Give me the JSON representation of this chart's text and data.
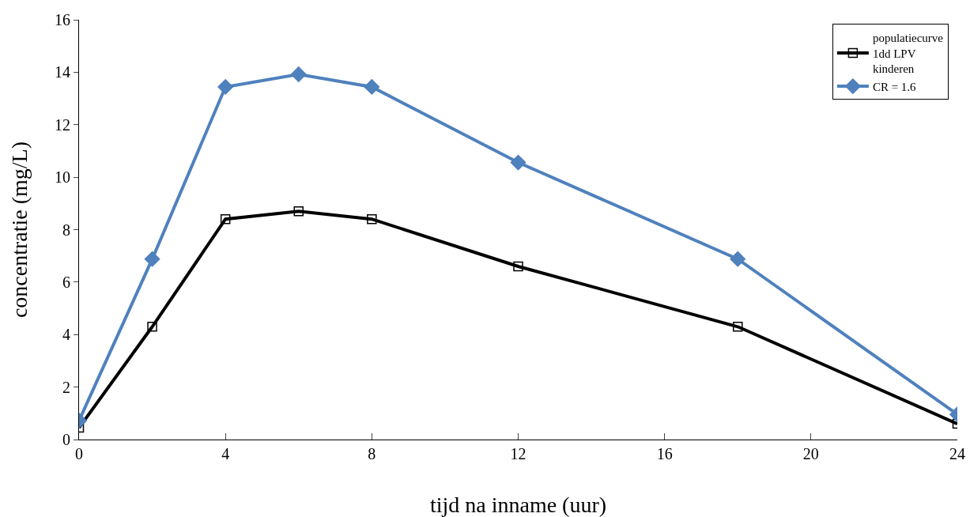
{
  "chart_data": {
    "type": "line",
    "xlabel": "tijd na inname (uur)",
    "ylabel": "concentratie (mg/L)",
    "x": [
      0,
      2,
      4,
      6,
      8,
      12,
      18,
      24
    ],
    "series": [
      {
        "name": "populatiecurve 1dd LPV kinderen",
        "color": "#000000",
        "marker": "square",
        "values": [
          0.45,
          4.3,
          8.4,
          8.7,
          8.4,
          6.6,
          4.3,
          0.6
        ]
      },
      {
        "name": "CR = 1.6",
        "color": "#4f81bd",
        "marker": "diamond",
        "values": [
          0.72,
          6.88,
          13.44,
          13.92,
          13.44,
          10.56,
          6.88,
          0.96
        ]
      }
    ],
    "xlim": [
      0,
      24
    ],
    "xticks": [
      0,
      4,
      8,
      12,
      16,
      20,
      24
    ],
    "ylim": [
      0,
      16
    ],
    "yticks": [
      0,
      2,
      4,
      6,
      8,
      10,
      12,
      14,
      16
    ],
    "grid": false,
    "legend": "top right",
    "line_style": "solid"
  }
}
